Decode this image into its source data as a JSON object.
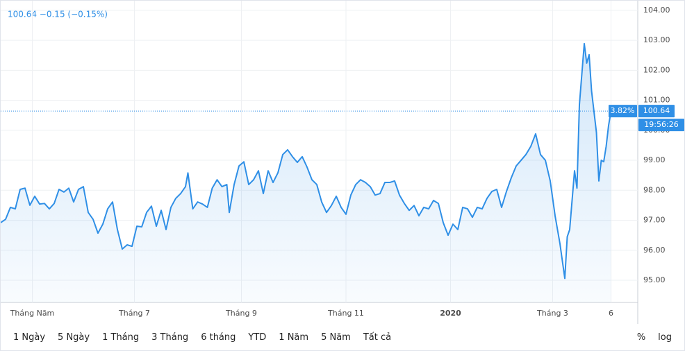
{
  "chart_data": {
    "type": "line",
    "header": "100.64  −0.15 (−0.15%)",
    "xlim": [
      0,
      262
    ],
    "xticks": [
      {
        "value": 13,
        "label": "Tháng Năm"
      },
      {
        "value": 55,
        "label": "Tháng 7"
      },
      {
        "value": 99,
        "label": "Tháng 9"
      },
      {
        "value": 142,
        "label": "Tháng 11"
      },
      {
        "value": 185,
        "label": "2020"
      },
      {
        "value": 227,
        "label": "Tháng 3"
      },
      {
        "value": 251,
        "label": "6"
      }
    ],
    "ylim": [
      94.26,
      104.32
    ],
    "yticks": [
      {
        "value": 95,
        "label": "95.00"
      },
      {
        "value": 96,
        "label": "96.00"
      },
      {
        "value": 97,
        "label": "97.00"
      },
      {
        "value": 98,
        "label": "98.00"
      },
      {
        "value": 99,
        "label": "99.00"
      },
      {
        "value": 100,
        "label": "100.00"
      },
      {
        "value": 101,
        "label": "101.00"
      },
      {
        "value": 102,
        "label": "102.00"
      },
      {
        "value": 103,
        "label": "103.00"
      },
      {
        "value": 104,
        "label": "104.00"
      }
    ],
    "grid": true,
    "log_scale": false,
    "series": [
      {
        "color": "#2f8fe6",
        "x": [
          0,
          2,
          4,
          6,
          8,
          10,
          12,
          14,
          16,
          18,
          20,
          22,
          24,
          26,
          28,
          30,
          32,
          34,
          36,
          38,
          40,
          42,
          44,
          46,
          48,
          50,
          52,
          54,
          56,
          58,
          60,
          62,
          64,
          66,
          68,
          70,
          72,
          74,
          76,
          77,
          79,
          81,
          83,
          85,
          87,
          89,
          91,
          93,
          94,
          96,
          98,
          100,
          102,
          104,
          106,
          108,
          110,
          112,
          114,
          116,
          118,
          120,
          122,
          124,
          126,
          128,
          130,
          132,
          134,
          136,
          138,
          140,
          142,
          144,
          146,
          148,
          150,
          152,
          154,
          156,
          158,
          160,
          162,
          164,
          166,
          168,
          170,
          172,
          174,
          176,
          178,
          180,
          182,
          184,
          186,
          188,
          190,
          192,
          194,
          196,
          198,
          200,
          202,
          204,
          206,
          208,
          210,
          212,
          214,
          216,
          218,
          220,
          222,
          224,
          226,
          228,
          230,
          232,
          233,
          234,
          236,
          237,
          238,
          240,
          241,
          242,
          243,
          245,
          246,
          247,
          248,
          249,
          250,
          251
        ],
        "values": [
          96.92,
          97.03,
          97.43,
          97.38,
          98.03,
          98.07,
          97.5,
          97.8,
          97.54,
          97.56,
          97.38,
          97.56,
          98.03,
          97.94,
          98.07,
          97.61,
          98.03,
          98.12,
          97.26,
          97.03,
          96.57,
          96.87,
          97.38,
          97.61,
          96.69,
          96.04,
          96.18,
          96.13,
          96.8,
          96.78,
          97.26,
          97.47,
          96.8,
          97.33,
          96.69,
          97.43,
          97.73,
          97.89,
          98.12,
          98.58,
          97.38,
          97.61,
          97.54,
          97.43,
          98.07,
          98.35,
          98.12,
          98.19,
          97.26,
          98.19,
          98.81,
          98.95,
          98.19,
          98.35,
          98.65,
          97.89,
          98.65,
          98.26,
          98.58,
          99.19,
          99.35,
          99.12,
          98.93,
          99.12,
          98.77,
          98.35,
          98.19,
          97.61,
          97.26,
          97.49,
          97.8,
          97.43,
          97.2,
          97.84,
          98.19,
          98.35,
          98.26,
          98.12,
          97.84,
          97.89,
          98.26,
          98.26,
          98.31,
          97.84,
          97.56,
          97.33,
          97.49,
          97.15,
          97.43,
          97.38,
          97.66,
          97.56,
          96.92,
          96.5,
          96.87,
          96.69,
          97.43,
          97.38,
          97.1,
          97.43,
          97.38,
          97.73,
          97.96,
          98.03,
          97.43,
          97.96,
          98.42,
          98.81,
          99,
          99.19,
          99.46,
          99.88,
          99.19,
          99,
          98.31,
          97.15,
          96.22,
          95.06,
          96.45,
          96.69,
          98.65,
          98.07,
          100.85,
          102.89,
          102.24,
          102.52,
          101.31,
          99.93,
          98.31,
          99,
          98.95,
          99.46,
          100.16,
          100.64
        ]
      }
    ],
    "last_price": {
      "value": 100.64,
      "label": "100.64"
    },
    "change_label": "3.82%",
    "time_label": "19:56:26",
    "range_buttons": [
      "1 Ngày",
      "5 Ngày",
      "1 Tháng",
      "3 Tháng",
      "6 tháng",
      "YTD",
      "1 Năm",
      "5 Năm",
      "Tất cả"
    ],
    "scale_buttons": [
      "%",
      "log"
    ]
  }
}
